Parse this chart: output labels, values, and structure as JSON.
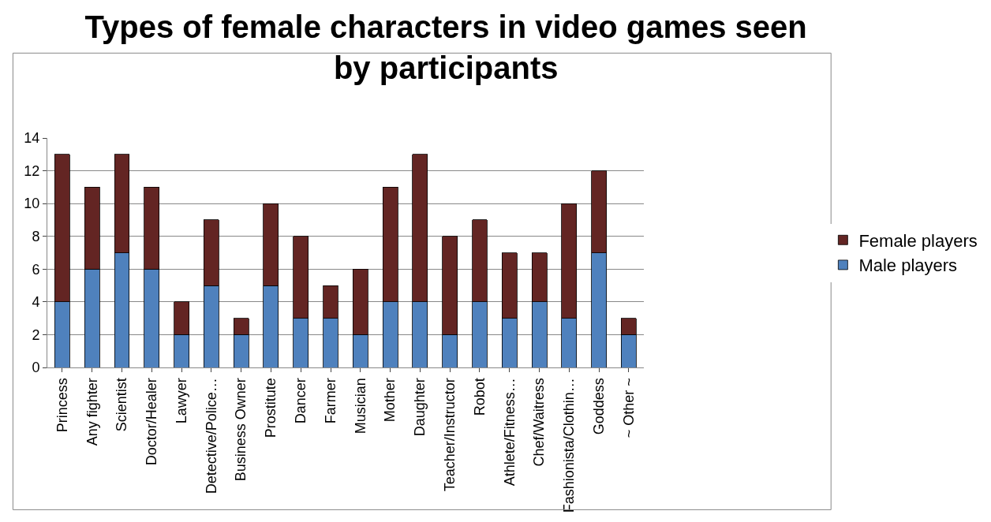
{
  "chart_data": {
    "type": "bar",
    "stacked": true,
    "title": "Types of female characters in video games seen by participants",
    "categories": [
      "Princess",
      "Any fighter",
      "Scientist",
      "Doctor/Healer",
      "Lawyer",
      "Detective/Police…",
      "Business Owner",
      "Prostitute",
      "Dancer",
      "Farmer",
      "Musician",
      "Mother",
      "Daughter",
      "Teacher/Instructor",
      "Robot",
      "Athlete/Fitness…",
      "Chef/Waitress",
      "Fashionista/Clothin…",
      "Goddess",
      "~ Other ~"
    ],
    "series": [
      {
        "name": "Male players",
        "color": "#4f81bd",
        "values": [
          4,
          6,
          7,
          6,
          2,
          5,
          2,
          5,
          3,
          3,
          2,
          4,
          4,
          2,
          4,
          3,
          4,
          3,
          7,
          2
        ]
      },
      {
        "name": "Female players",
        "color": "#632523",
        "values": [
          9,
          5,
          6,
          5,
          2,
          4,
          1,
          5,
          5,
          2,
          4,
          7,
          9,
          6,
          5,
          4,
          3,
          7,
          5,
          1
        ]
      }
    ],
    "ylim": [
      0,
      14
    ],
    "yticks": [
      0,
      2,
      4,
      6,
      8,
      10,
      12,
      14
    ],
    "grid": "y",
    "legend": "right"
  }
}
